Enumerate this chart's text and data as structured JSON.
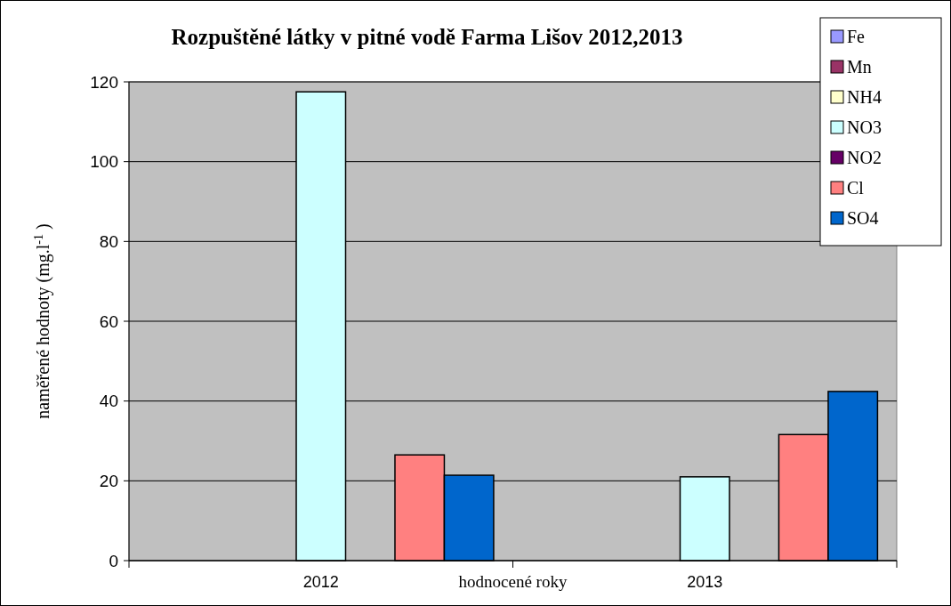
{
  "chart_data": {
    "type": "bar",
    "title": "Rozpuštěné látky v pitné vodě Farma Lišov  2012,2013",
    "xlabel": "hodnocené roky",
    "ylabel": "naměřené hodnoty (mg.l$^{-1}$ )",
    "categories": [
      "2012",
      "2013"
    ],
    "series": [
      {
        "name": "Fe",
        "color": "#9999ff",
        "values": [
          null,
          0
        ]
      },
      {
        "name": "Mn",
        "color": "#993366",
        "values": [
          null,
          0
        ]
      },
      {
        "name": "NH4",
        "color": "#ffffcc",
        "values": [
          null,
          0
        ]
      },
      {
        "name": "NO3",
        "color": "#ccffff",
        "values": [
          117.5,
          21
        ]
      },
      {
        "name": "NO2",
        "color": "#660066",
        "values": [
          null,
          0
        ]
      },
      {
        "name": "Cl",
        "color": "#ff8080",
        "values": [
          26.5,
          31.6
        ]
      },
      {
        "name": "SO4",
        "color": "#0066cc",
        "values": [
          21.4,
          42.4
        ]
      }
    ],
    "ylim": [
      0,
      120
    ],
    "yticks": [
      0,
      20,
      40,
      60,
      80,
      100,
      120
    ],
    "grid": "y",
    "legend": "top right"
  }
}
